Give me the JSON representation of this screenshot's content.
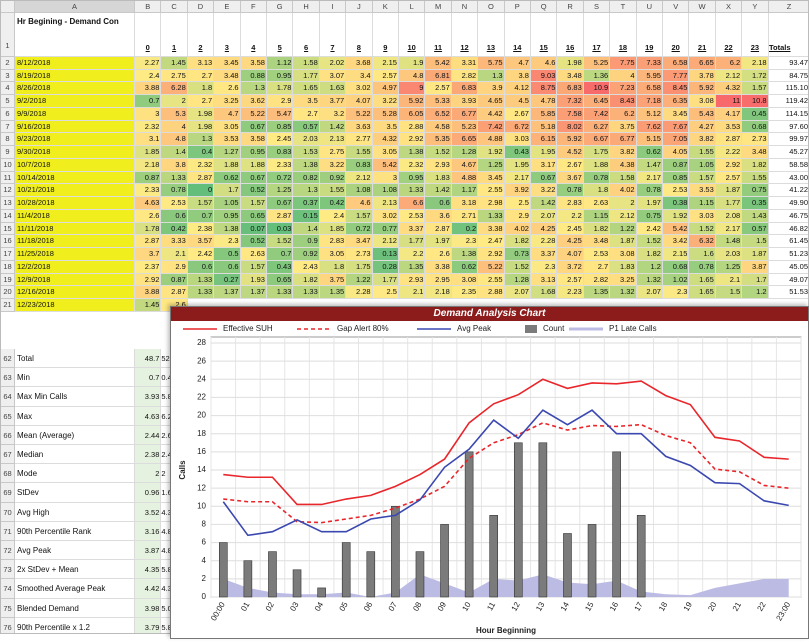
{
  "sheet": {
    "columns": [
      "A",
      "B",
      "C",
      "D",
      "E",
      "F",
      "G",
      "H",
      "I",
      "J",
      "K",
      "L",
      "M",
      "N",
      "O",
      "P",
      "Q",
      "R",
      "S",
      "T",
      "U",
      "V",
      "W",
      "X",
      "Y",
      "Z"
    ],
    "header": {
      "num": 1,
      "label": "Hr Begining - Demand Con",
      "hours": [
        0,
        1,
        2,
        3,
        4,
        5,
        6,
        7,
        8,
        9,
        10,
        11,
        12,
        13,
        14,
        15,
        16,
        17,
        18,
        19,
        20,
        21,
        22,
        23
      ],
      "total": "Totals"
    },
    "heat_colors": [
      "#63be7b",
      "#ffeb84",
      "#f8696b"
    ],
    "date_color": "#f0ee1c",
    "rows": [
      {
        "num": 2,
        "date": "8/12/2018",
        "values": [
          2.27,
          1.45,
          3.13,
          3.45,
          3.58,
          1.12,
          1.58,
          2.02,
          3.68,
          2.15,
          1.9,
          5.42,
          3.31,
          5.75,
          4.7,
          4.6,
          1.98,
          5.25,
          7.75,
          7.33,
          6.58,
          6.65,
          6.2,
          2.18
        ],
        "total": "93.47"
      },
      {
        "num": 3,
        "date": "8/19/2018",
        "values": [
          2.4,
          2.75,
          2.7,
          3.48,
          0.88,
          0.95,
          1.77,
          3.07,
          3.4,
          2.57,
          4.8,
          6.81,
          2.82,
          1.3,
          3.8,
          9.03,
          3.48,
          1.36,
          4,
          5.95,
          7.77,
          3.78,
          2.12,
          1.72
        ],
        "total": "84.75"
      },
      {
        "num": 4,
        "date": "8/26/2018",
        "values": [
          3.88,
          6.28,
          1.8,
          2.6,
          1.3,
          1.78,
          1.65,
          1.63,
          3.02,
          4.97,
          9,
          2.57,
          6.83,
          3.9,
          4.12,
          8.75,
          6.83,
          10.9,
          7.23,
          6.58,
          8.45,
          5.92,
          4.32,
          1.57
        ],
        "total": "115.10"
      },
      {
        "num": 5,
        "date": "9/2/2018",
        "values": [
          0.7,
          2,
          2.7,
          3.25,
          3.62,
          2.9,
          3.5,
          3.77,
          4.07,
          3.22,
          5.92,
          5.33,
          3.93,
          4.65,
          4.5,
          4.78,
          7.32,
          6.45,
          8.43,
          7.18,
          6.35,
          3.08,
          11,
          10.8
        ],
        "total": "119.42"
      },
      {
        "num": 6,
        "date": "9/9/2018",
        "values": [
          3,
          5.3,
          1.98,
          4.7,
          5.22,
          5.47,
          2.7,
          3.2,
          5.22,
          5.28,
          6.05,
          6.52,
          6.77,
          4.42,
          2.67,
          5.85,
          7.58,
          7.42,
          6.2,
          5.12,
          3.45,
          5.43,
          4.17,
          0.45
        ],
        "total": "114.15"
      },
      {
        "num": 7,
        "date": "9/16/2018",
        "values": [
          2.32,
          4,
          1.98,
          3.05,
          0.67,
          0.85,
          0.57,
          1.42,
          3.63,
          3.5,
          2.88,
          4.58,
          5.23,
          7.42,
          6.72,
          5.18,
          8.02,
          6.27,
          3.75,
          7.62,
          7.67,
          4.27,
          3.53,
          0.68
        ],
        "total": "97.60"
      },
      {
        "num": 8,
        "date": "9/23/2018",
        "values": [
          3.1,
          4.8,
          1.3,
          3.53,
          3.58,
          2.45,
          2.03,
          2.13,
          2.77,
          4.32,
          2.92,
          5.35,
          6.65,
          4.88,
          3.03,
          6.15,
          5.92,
          6.67,
          6.77,
          5.15,
          7.05,
          3.82,
          2.87,
          2.73
        ],
        "total": "99.97"
      },
      {
        "num": 9,
        "date": "9/30/2018",
        "values": [
          1.85,
          1.4,
          0.4,
          1.27,
          0.95,
          0.83,
          1.53,
          2.75,
          1.55,
          3.05,
          1.38,
          1.52,
          1.28,
          1.92,
          0.43,
          1.95,
          4.52,
          1.75,
          3.82,
          0.62,
          4.05,
          1.55,
          2.22,
          3.48
        ],
        "total": "45.27"
      },
      {
        "num": 10,
        "date": "10/7/2018",
        "values": [
          2.18,
          3.8,
          2.32,
          1.88,
          1.88,
          2.33,
          1.38,
          3.22,
          0.83,
          5.42,
          2.32,
          2.93,
          4.67,
          1.25,
          1.95,
          3.17,
          2.67,
          1.88,
          4.38,
          1.47,
          0.87,
          1.05,
          2.92,
          1.82
        ],
        "total": "58.58"
      },
      {
        "num": 11,
        "date": "10/14/2018",
        "values": [
          0.87,
          1.33,
          2.87,
          0.62,
          0.67,
          0.72,
          0.82,
          0.92,
          2.12,
          3,
          0.95,
          1.83,
          4.88,
          3.45,
          2.17,
          0.67,
          3.67,
          0.78,
          1.58,
          2.17,
          0.85,
          1.57,
          2.57,
          1.55
        ],
        "total": "43.00"
      },
      {
        "num": 12,
        "date": "10/21/2018",
        "values": [
          2.33,
          0.78,
          0,
          1.7,
          0.52,
          1.25,
          1.3,
          1.55,
          1.08,
          1.08,
          1.33,
          1.42,
          1.17,
          2.55,
          3.92,
          3.22,
          0.78,
          1.8,
          4.02,
          0.78,
          2.53,
          3.53,
          1.87,
          0.75
        ],
        "total": "41.22"
      },
      {
        "num": 13,
        "date": "10/28/2018",
        "values": [
          4.63,
          2.53,
          1.57,
          1.05,
          1.57,
          0.67,
          0.37,
          0.42,
          4.6,
          2.13,
          6.6,
          0.6,
          3.18,
          2.98,
          2.5,
          1.42,
          2.83,
          2.63,
          2,
          1.97,
          0.38,
          1.15,
          1.77,
          0.35
        ],
        "total": "49.90"
      },
      {
        "num": 14,
        "date": "11/4/2018",
        "values": [
          2.6,
          0.6,
          0.7,
          0.95,
          0.65,
          2.87,
          0.15,
          2.4,
          1.57,
          3.02,
          2.53,
          3.6,
          2.71,
          1.33,
          2.9,
          2.07,
          2.2,
          1.15,
          2.12,
          0.75,
          1.92,
          3.03,
          2.08,
          1.43
        ],
        "total": "46.75"
      },
      {
        "num": 15,
        "date": "11/11/2018",
        "values": [
          1.78,
          0.42,
          2.38,
          1.38,
          0.07,
          0.03,
          1.4,
          1.85,
          0.72,
          0.77,
          3.37,
          2.87,
          0.2,
          3.38,
          4.02,
          4.25,
          2.45,
          1.82,
          1.22,
          2.42,
          5.42,
          1.52,
          2.17,
          0.57
        ],
        "total": "46.82"
      },
      {
        "num": 16,
        "date": "11/18/2018",
        "values": [
          2.87,
          3.33,
          3.57,
          2.3,
          0.52,
          1.52,
          0.9,
          2.83,
          3.47,
          2.12,
          1.77,
          1.97,
          2.3,
          2.47,
          1.82,
          2.28,
          4.25,
          3.48,
          1.87,
          1.52,
          3.42,
          6.32,
          1.48,
          1.5
        ],
        "total": "61.45"
      },
      {
        "num": 17,
        "date": "11/25/2018",
        "values": [
          3.7,
          2.1,
          2.42,
          0.5,
          2.63,
          0.7,
          0.92,
          3.05,
          2.73,
          0.13,
          2.2,
          2.6,
          1.38,
          2.92,
          0.73,
          3.37,
          4.07,
          2.53,
          3.08,
          1.82,
          2.15,
          1.6,
          2.03,
          1.87
        ],
        "total": "51.23"
      },
      {
        "num": 18,
        "date": "12/2/2018",
        "values": [
          2.37,
          2.9,
          0.6,
          0.6,
          1.57,
          0.43,
          2.43,
          1.8,
          1.75,
          0.28,
          1.35,
          3.38,
          0.62,
          5.22,
          1.52,
          2.3,
          3.72,
          2.7,
          1.83,
          1.2,
          0.68,
          0.78,
          1.25,
          3.87
        ],
        "total": "45.05"
      },
      {
        "num": 19,
        "date": "12/9/2018",
        "values": [
          2.92,
          0.87,
          1.33,
          0.27,
          1.93,
          0.65,
          1.82,
          3.75,
          1.22,
          1.77,
          2.93,
          2.95,
          3.08,
          2.55,
          1.28,
          3.13,
          2.57,
          2.82,
          3.25,
          1.32,
          1.02,
          1.65,
          2.1,
          1.7
        ],
        "total": "49.07"
      },
      {
        "num": 20,
        "date": "12/16/2018",
        "values": [
          3.88,
          2.87,
          1.33,
          1.37,
          1.37,
          1.33,
          1.33,
          1.35,
          2.28,
          2.5,
          2.1,
          2.18,
          2.35,
          2.88,
          2.07,
          1.68,
          2.23,
          1.35,
          1.32,
          2.07,
          2.3,
          1.65,
          1.5,
          1.2
        ],
        "total": "51.53"
      },
      {
        "num": 21,
        "date": "12/23/2018",
        "values": [
          1.45,
          2.6
        ],
        "total": null
      }
    ],
    "stats": [
      {
        "num": 62,
        "label": "Total",
        "b": 48.7,
        "c": "52."
      },
      {
        "num": 63,
        "label": "Min",
        "b": 0.7,
        "c": "0.4"
      },
      {
        "num": 64,
        "label": "Max Min Calls",
        "b": 3.93,
        "c": "5.8"
      },
      {
        "num": 65,
        "label": "Max",
        "b": 4.63,
        "c": "6.2"
      },
      {
        "num": 66,
        "label": "Mean (Average)",
        "b": 2.44,
        "c": "2.6"
      },
      {
        "num": 67,
        "label": "Median",
        "b": 2.38,
        "c": "2.4"
      },
      {
        "num": 68,
        "label": "Mode",
        "b": 2,
        "c": "2"
      },
      {
        "num": 69,
        "label": "StDev",
        "b": 0.96,
        "c": "1.6"
      },
      {
        "num": 70,
        "label": "Avg High",
        "b": 3.52,
        "c": "4.3"
      },
      {
        "num": 71,
        "label": "90th Percentile Rank",
        "b": 3.16,
        "c": "4.8"
      },
      {
        "num": 72,
        "label": "Avg Peak",
        "b": 3.87,
        "c": "4.8"
      },
      {
        "num": 73,
        "label": "2x StDev + Mean",
        "b": 4.35,
        "c": "5.8"
      },
      {
        "num": 74,
        "label": "Smoothed Average Peak",
        "b": 4.42,
        "c": "4.3"
      },
      {
        "num": 75,
        "label": "Blended Demand",
        "b": 3.98,
        "c": "5.0"
      },
      {
        "num": 76,
        "label": "90th Percentile x 1.2",
        "b": 3.79,
        "c": "5.8"
      }
    ]
  },
  "chart_data": {
    "type": "combo",
    "title": "Demand Analysis Chart",
    "x_label": "Hour Beginning",
    "y_label": "Calls",
    "categories": [
      "00:00",
      "01",
      "02",
      "03",
      "04",
      "05",
      "06",
      "07",
      "08",
      "09",
      "10",
      "11",
      "12",
      "13",
      "14",
      "15",
      "16",
      "17",
      "18",
      "19",
      "20",
      "21",
      "22",
      "23:00"
    ],
    "ylim": [
      0,
      28
    ],
    "yticks": [
      0,
      2,
      4,
      6,
      8,
      10,
      12,
      14,
      16,
      18,
      20,
      22,
      24,
      26,
      28
    ],
    "grid": true,
    "series": [
      {
        "name": "Effective SUH",
        "type": "line",
        "color": "#e8262b",
        "values": [
          13.5,
          13.2,
          13.2,
          10.2,
          10.2,
          10.8,
          11.2,
          12.2,
          13.5,
          15.2,
          19.2,
          21.3,
          22.3,
          24,
          23,
          23.6,
          23.5,
          23.8,
          22.2,
          21.2,
          17.6,
          17.2,
          15.4,
          15.2
        ]
      },
      {
        "name": "Gap Alert 80%",
        "type": "line",
        "dash": true,
        "color": "#e8262b",
        "values": [
          10.8,
          10.5,
          10.5,
          8.3,
          8.2,
          8.6,
          9,
          9.8,
          10.8,
          12.2,
          15.3,
          17,
          17.9,
          19.2,
          18.4,
          18.9,
          18.8,
          19,
          17.8,
          17,
          14.1,
          13.8,
          12.3,
          12
        ]
      },
      {
        "name": "Avg Peak",
        "type": "line",
        "color": "#3a48b0",
        "values": [
          10.5,
          6.8,
          7.2,
          8.5,
          7.2,
          7.2,
          8.6,
          9,
          10.7,
          14.3,
          16.3,
          19.5,
          17.5,
          20.6,
          19,
          20.6,
          18,
          18,
          15.5,
          14.5,
          12.6,
          12.5,
          10.6,
          10.1
        ]
      },
      {
        "name": "Count",
        "type": "bar",
        "color": "#7b7b7b",
        "values": [
          6,
          4,
          5,
          3,
          1,
          6,
          5,
          10,
          5,
          8,
          16,
          9,
          17,
          17,
          7,
          8,
          16,
          9,
          0,
          0,
          0,
          0,
          0,
          0
        ]
      },
      {
        "name": "P1 Late Calls",
        "type": "area",
        "color": "#bcbbe4",
        "values": [
          2,
          1,
          0.5,
          0.3,
          0.3,
          0.5,
          0,
          0.5,
          2.5,
          1.5,
          0.5,
          2,
          1.8,
          2.5,
          1.6,
          1.4,
          1.8,
          0.6,
          0.3,
          0.2,
          1,
          1.5,
          2,
          2
        ]
      }
    ]
  }
}
